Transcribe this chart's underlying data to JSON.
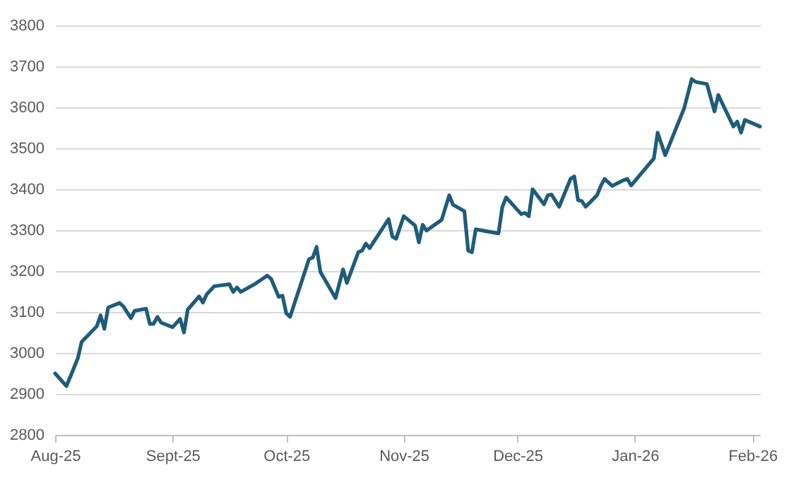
{
  "chart_data": {
    "type": "line",
    "x": [
      "2025-08-01",
      "2025-08-04",
      "2025-08-07",
      "2025-08-08",
      "2025-08-12",
      "2025-08-13",
      "2025-08-14",
      "2025-08-15",
      "2025-08-18",
      "2025-08-19",
      "2025-08-21",
      "2025-08-22",
      "2025-08-25",
      "2025-08-26",
      "2025-08-27",
      "2025-08-28",
      "2025-08-29",
      "2025-09-01",
      "2025-09-03",
      "2025-09-04",
      "2025-09-05",
      "2025-09-08",
      "2025-09-09",
      "2025-09-10",
      "2025-09-12",
      "2025-09-16",
      "2025-09-17",
      "2025-09-18",
      "2025-09-19",
      "2025-09-23",
      "2025-09-26",
      "2025-09-27",
      "2025-09-29",
      "2025-09-30",
      "2025-10-01",
      "2025-10-02",
      "2025-10-07",
      "2025-10-08",
      "2025-10-09",
      "2025-10-10",
      "2025-10-14",
      "2025-10-16",
      "2025-10-17",
      "2025-10-20",
      "2025-10-21",
      "2025-10-22",
      "2025-10-23",
      "2025-10-28",
      "2025-10-29",
      "2025-10-30",
      "2025-11-01",
      "2025-11-04",
      "2025-11-05",
      "2025-11-06",
      "2025-11-07",
      "2025-11-11",
      "2025-11-13",
      "2025-11-14",
      "2025-11-17",
      "2025-11-18",
      "2025-11-19",
      "2025-11-20",
      "2025-11-26",
      "2025-11-27",
      "2025-11-28",
      "2025-12-02",
      "2025-12-03",
      "2025-12-04",
      "2025-12-05",
      "2025-12-08",
      "2025-12-09",
      "2025-12-10",
      "2025-12-12",
      "2025-12-15",
      "2025-12-16",
      "2025-12-17",
      "2025-12-18",
      "2025-12-19",
      "2025-12-22",
      "2025-12-23",
      "2025-12-24",
      "2025-12-26",
      "2025-12-29",
      "2025-12-30",
      "2025-12-31",
      "2026-01-06",
      "2026-01-07",
      "2026-01-09",
      "2026-01-14",
      "2026-01-16",
      "2026-01-17",
      "2026-01-20",
      "2026-01-22",
      "2026-01-23",
      "2026-01-27",
      "2026-01-28",
      "2026-01-29",
      "2026-01-30",
      "2026-02-03"
    ],
    "series": [
      {
        "color": "#1f5c7a",
        "values": [
          2950,
          2919,
          2987,
          3027,
          3065,
          3092,
          3059,
          3111,
          3122,
          3114,
          3085,
          3103,
          3108,
          3071,
          3071,
          3088,
          3074,
          3063,
          3083,
          3050,
          3106,
          3138,
          3123,
          3143,
          3163,
          3168,
          3149,
          3160,
          3149,
          3170,
          3189,
          3181,
          3137,
          3140,
          3097,
          3088,
          3229,
          3233,
          3259,
          3198,
          3134,
          3204,
          3171,
          3246,
          3250,
          3267,
          3256,
          3327,
          3284,
          3279,
          3334,
          3311,
          3270,
          3313,
          3299,
          3325,
          3385,
          3362,
          3346,
          3250,
          3246,
          3302,
          3292,
          3356,
          3380,
          3339,
          3342,
          3334,
          3400,
          3363,
          3385,
          3387,
          3357,
          3425,
          3431,
          3373,
          3371,
          3357,
          3385,
          3408,
          3425,
          3408,
          3422,
          3425,
          3409,
          3475,
          3538,
          3483,
          3598,
          3669,
          3662,
          3657,
          3590,
          3630,
          3553,
          3565,
          3538,
          3569,
          3553
        ]
      }
    ],
    "xlim": [
      "2025-08-01",
      "2026-02-03"
    ],
    "xticks": [
      {
        "value": "2025-08-01",
        "label": "Aug-25"
      },
      {
        "value": "2025-09-01",
        "label": "Sept-25"
      },
      {
        "value": "2025-10-01",
        "label": "Oct-25"
      },
      {
        "value": "2025-11-01",
        "label": "Nov-25"
      },
      {
        "value": "2025-12-01",
        "label": "Dec-25"
      },
      {
        "value": "2026-01-01",
        "label": "Jan-26"
      },
      {
        "value": "2026-02-01",
        "label": "Feb-26"
      }
    ],
    "ylim": [
      2800,
      3800
    ],
    "yticks": [
      2800,
      2900,
      3000,
      3100,
      3200,
      3300,
      3400,
      3500,
      3600,
      3700,
      3800
    ],
    "grid": "y",
    "line_style": "solid"
  }
}
